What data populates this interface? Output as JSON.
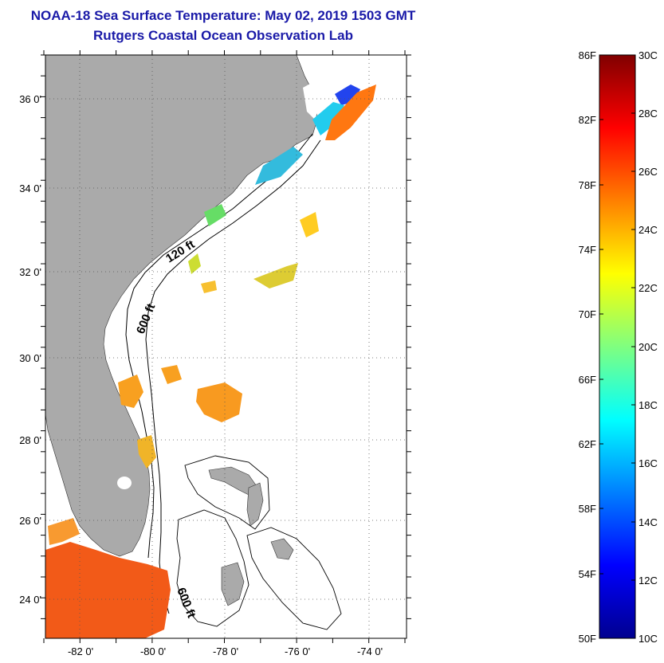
{
  "header": {
    "title": "NOAA-18 Sea Surface Temperature:  May 02, 2019 1503 GMT",
    "subtitle": "Rutgers Coastal Ocean Observation Lab"
  },
  "map": {
    "lon_labels": [
      "-82 0'",
      "-80 0'",
      "-78 0'",
      "-76 0'",
      "-74 0'"
    ],
    "lat_labels": [
      "36 0'",
      "34 0'",
      "32 0'",
      "30 0'",
      "28 0'",
      "26 0'",
      "24 0'"
    ],
    "isobath_labels": [
      "120 ft",
      "600 ft",
      "600 ft"
    ],
    "colors": {
      "land": "#aaaaaa",
      "ocean": "#ffffff"
    }
  },
  "colorbar": {
    "f_labels": [
      "86F",
      "82F",
      "78F",
      "74F",
      "70F",
      "66F",
      "62F",
      "58F",
      "54F",
      "50F"
    ],
    "c_labels": [
      "30C",
      "28C",
      "26C",
      "24C",
      "22C",
      "20C",
      "18C",
      "16C",
      "14C",
      "12C",
      "10C"
    ],
    "range_c": [
      10,
      30
    ],
    "colormap": "jet"
  }
}
